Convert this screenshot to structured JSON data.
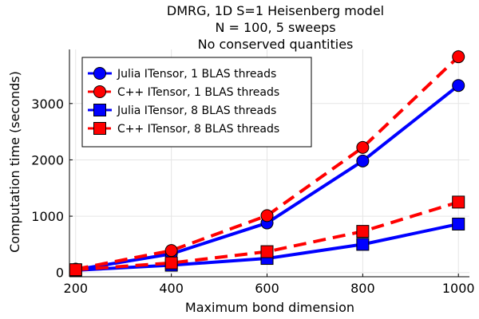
{
  "chart_data": {
    "type": "line",
    "title_lines": [
      "DMRG, 1D S=1 Heisenberg model",
      "N = 100, 5 sweeps",
      "No conserved quantities"
    ],
    "xlabel": "Maximum bond dimension",
    "ylabel": "Computation time (seconds)",
    "xlim": [
      187,
      1023
    ],
    "ylim": [
      -75,
      3960
    ],
    "xticks": [
      200,
      400,
      600,
      800,
      1000
    ],
    "yticks": [
      0,
      1000,
      2000,
      3000
    ],
    "grid": true,
    "legend_position": "top-left",
    "x": [
      200,
      400,
      600,
      800,
      1000
    ],
    "series": [
      {
        "name": "Julia ITensor, 1 BLAS threads",
        "values": [
          50,
          330,
          880,
          1980,
          3320
        ],
        "color": "#0000ff",
        "marker": "circle",
        "dash": "solid"
      },
      {
        "name": "C++ ITensor, 1 BLAS threads",
        "values": [
          60,
          390,
          1010,
          2220,
          3830
        ],
        "color": "#ff0000",
        "marker": "circle",
        "dash": "dashed"
      },
      {
        "name": "Julia ITensor, 8 BLAS threads",
        "values": [
          40,
          130,
          250,
          500,
          860
        ],
        "color": "#0000ff",
        "marker": "square",
        "dash": "solid"
      },
      {
        "name": "C++ ITensor, 8 BLAS threads",
        "values": [
          50,
          170,
          370,
          730,
          1250
        ],
        "color": "#ff0000",
        "marker": "square",
        "dash": "dashed"
      }
    ]
  }
}
